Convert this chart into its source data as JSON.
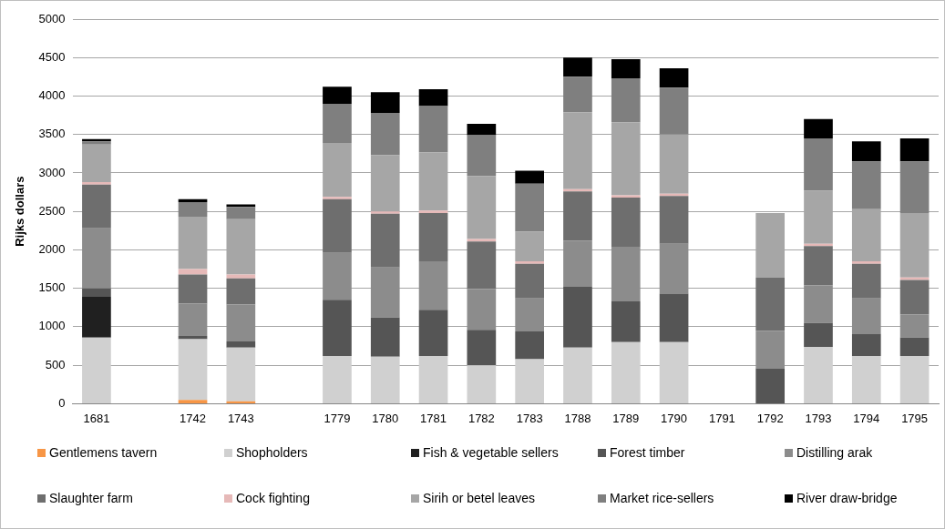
{
  "chart_data": {
    "type": "bar",
    "stacked": true,
    "ylabel": "Rijks dollars",
    "categories": [
      "1681",
      null,
      "1742",
      "1743",
      null,
      "1779",
      "1780",
      "1781",
      "1782",
      "1783",
      "1788",
      "1789",
      "1790",
      "1791",
      "1792",
      "1793",
      "1794",
      "1795"
    ],
    "series": [
      {
        "name": "Gentlemens tavern",
        "color": "#f79646",
        "values": [
          null,
          null,
          50,
          30,
          null,
          null,
          null,
          null,
          null,
          null,
          null,
          null,
          null,
          null,
          null,
          null,
          null,
          null
        ]
      },
      {
        "name": "Shopholders",
        "color": "#d0d0d0",
        "values": [
          860,
          null,
          790,
          700,
          null,
          620,
          610,
          620,
          500,
          580,
          730,
          800,
          800,
          null,
          null,
          740,
          620,
          620
        ]
      },
      {
        "name": "Fish & vegetable sellers",
        "color": "#202020",
        "values": [
          530,
          null,
          null,
          null,
          null,
          null,
          null,
          null,
          null,
          null,
          null,
          null,
          null,
          null,
          null,
          null,
          null,
          null
        ]
      },
      {
        "name": "Forest timber",
        "color": "#555555",
        "values": [
          110,
          null,
          40,
          80,
          null,
          730,
          510,
          600,
          460,
          360,
          790,
          530,
          630,
          null,
          460,
          310,
          290,
          240
        ]
      },
      {
        "name": "Distilling arak",
        "color": "#8c8c8c",
        "values": [
          780,
          null,
          420,
          480,
          null,
          610,
          650,
          630,
          530,
          430,
          600,
          710,
          650,
          null,
          490,
          490,
          460,
          300
        ]
      },
      {
        "name": "Slaughter farm",
        "color": "#6e6e6e",
        "values": [
          570,
          null,
          380,
          340,
          null,
          700,
          700,
          630,
          620,
          450,
          640,
          640,
          620,
          null,
          690,
          510,
          450,
          450
        ]
      },
      {
        "name": "Cock fighting",
        "color": "#e6b9b8",
        "values": [
          30,
          null,
          70,
          50,
          null,
          30,
          30,
          30,
          30,
          30,
          30,
          30,
          30,
          null,
          null,
          30,
          30,
          30
        ]
      },
      {
        "name": "Sirih or betel leaves",
        "color": "#a6a6a6",
        "values": [
          490,
          null,
          680,
          720,
          null,
          700,
          730,
          760,
          820,
          390,
          1000,
          950,
          770,
          null,
          840,
          690,
          680,
          840
        ]
      },
      {
        "name": "Market rice-sellers",
        "color": "#7f7f7f",
        "values": [
          40,
          null,
          190,
          160,
          null,
          510,
          550,
          600,
          530,
          620,
          460,
          570,
          610,
          null,
          null,
          680,
          620,
          670
        ]
      },
      {
        "name": "River draw-bridge",
        "color": "#000000",
        "values": [
          30,
          null,
          40,
          30,
          null,
          220,
          270,
          220,
          150,
          170,
          250,
          250,
          250,
          null,
          null,
          250,
          260,
          300
        ]
      }
    ],
    "ylim": [
      0,
      5000
    ],
    "yticks": [
      0,
      500,
      1000,
      1500,
      2000,
      2500,
      3000,
      3500,
      4000,
      4500,
      5000
    ],
    "grid": "y",
    "legend": "bottom"
  }
}
